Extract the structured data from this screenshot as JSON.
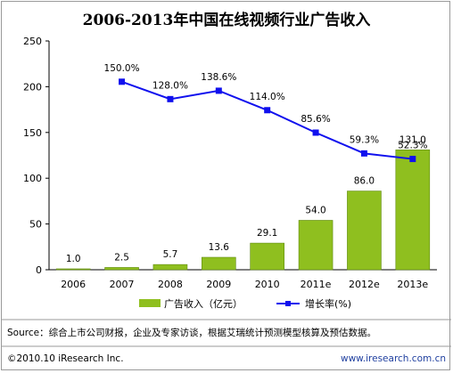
{
  "chart_data": {
    "type": "bar",
    "title": "2006-2013年中国在线视频行业广告收入",
    "categories": [
      "2006",
      "2007",
      "2008",
      "2009",
      "2010",
      "2011e",
      "2012e",
      "2013e"
    ],
    "ylim": [
      0,
      250
    ],
    "yticks": [
      0,
      50,
      100,
      150,
      200,
      250
    ],
    "series": [
      {
        "name": "广告收入（亿元）",
        "kind": "bar",
        "color": "#8fbf1f",
        "values": [
          1.0,
          2.5,
          5.7,
          13.6,
          29.1,
          54.0,
          86.0,
          131.0
        ],
        "labels": [
          "1.0",
          "2.5",
          "5.7",
          "13.6",
          "29.1",
          "54.0",
          "86.0",
          "131.0"
        ]
      },
      {
        "name": "增长率(%)",
        "kind": "line",
        "color": "#1010ee",
        "values": [
          null,
          150.0,
          128.0,
          138.6,
          114.0,
          85.6,
          59.3,
          52.3
        ],
        "labels": [
          "",
          "150.0%",
          "128.0%",
          "138.6%",
          "114.0%",
          "85.6%",
          "59.3%",
          "52.3%"
        ]
      }
    ],
    "legend_placement": "bottom",
    "grid": false
  },
  "footer": {
    "source": "Source：综合上市公司财报，企业及专家访谈，根据艾瑞统计预测模型核算及预估数据。",
    "copyright": "©2010.10 iResearch Inc.",
    "website": "www.iresearch.com.cn"
  }
}
